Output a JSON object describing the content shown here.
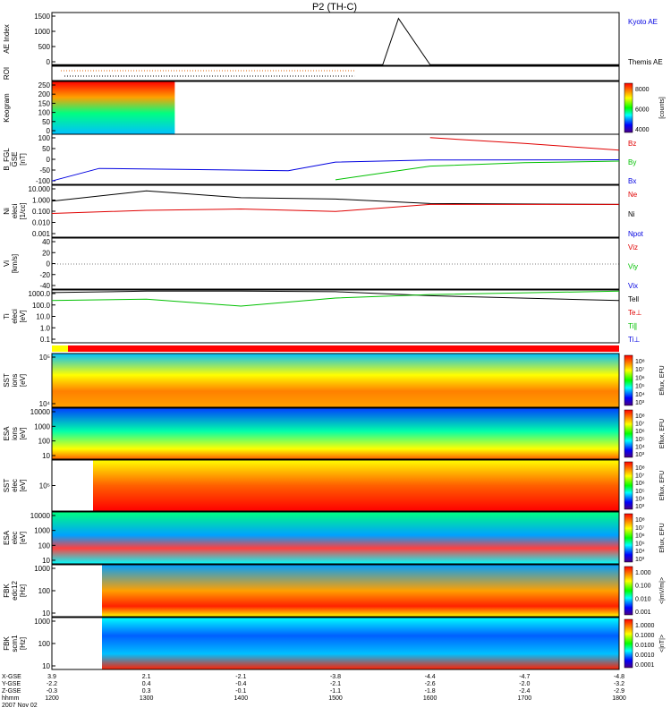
{
  "title": "P2 (TH-C)",
  "colors": {
    "red": "#e00000",
    "green": "#00c000",
    "blue": "#0000e0",
    "black": "#000000",
    "yellow": "#ffff00",
    "cyan": "#00ffff"
  },
  "panels": [
    {
      "id": "ae",
      "ylabel": [
        "AE Index"
      ],
      "ticks": [
        "1500",
        "1000",
        "500",
        "0"
      ],
      "legend": [
        {
          "text": "Kyoto AE",
          "color": "#0000e0"
        },
        {
          "text": "Themis AE",
          "color": "#000000"
        }
      ]
    },
    {
      "id": "roi",
      "ylabel": [
        "ROI"
      ],
      "ticks": [],
      "legend": []
    },
    {
      "id": "keogram",
      "ylabel": [
        "Keogram"
      ],
      "ticks": [
        "250",
        "200",
        "150",
        "100",
        "50",
        "0"
      ],
      "legend": [],
      "colorbar": {
        "ticks": [
          "8000",
          "6000",
          "4000"
        ],
        "label": "[counts]"
      }
    },
    {
      "id": "bfgl",
      "ylabel": [
        "B_FGL",
        "GSE",
        "[nT]"
      ],
      "ticks": [
        "100",
        "50",
        "0",
        "-50",
        "-100"
      ],
      "legend": [
        {
          "text": "Bz",
          "color": "#e00000"
        },
        {
          "text": "By",
          "color": "#00c000"
        },
        {
          "text": "Bx",
          "color": "#0000e0"
        }
      ]
    },
    {
      "id": "ni",
      "ylabel": [
        "Ni",
        "eleci",
        "[1/cc]"
      ],
      "ticks": [
        "10.000",
        "1.000",
        "0.100",
        "0.010",
        "0.001"
      ],
      "legend": [
        {
          "text": "Ne",
          "color": "#e00000"
        },
        {
          "text": "Ni",
          "color": "#000000"
        },
        {
          "text": "Npot",
          "color": "#0000e0"
        }
      ]
    },
    {
      "id": "vi",
      "ylabel": [
        "Vi",
        "[km/s]"
      ],
      "ticks": [
        "40",
        "20",
        "0",
        "-20",
        "-40"
      ],
      "legend": [
        {
          "text": "Viz",
          "color": "#e00000"
        },
        {
          "text": "Viy",
          "color": "#00c000"
        },
        {
          "text": "Vix",
          "color": "#0000e0"
        }
      ]
    },
    {
      "id": "ti",
      "ylabel": [
        "Ti",
        "eleci",
        "[eV]"
      ],
      "ticks": [
        "1000.0",
        "100.0",
        "10.0",
        "1.0",
        "0.1"
      ],
      "legend": [
        {
          "text": "Tell",
          "color": "#000000"
        },
        {
          "text": "Te⊥",
          "color": "#e00000"
        },
        {
          "text": "Ti∥",
          "color": "#00c000"
        },
        {
          "text": "Ti⊥",
          "color": "#0000e0"
        }
      ]
    },
    {
      "id": "sst_i",
      "ylabel": [
        "SST",
        "ions",
        "[eV]"
      ],
      "ticks": [
        "10⁵",
        "10⁴"
      ],
      "legend": [],
      "colorbar": {
        "ticks": [
          "10⁸",
          "10⁷",
          "10⁶",
          "10⁵",
          "10⁴",
          "10³"
        ],
        "label": "Eflux, EFU"
      }
    },
    {
      "id": "esa_i",
      "ylabel": [
        "ESA",
        "ions",
        "[eV]"
      ],
      "ticks": [
        "10000",
        "1000",
        "100",
        "10"
      ],
      "legend": [],
      "colorbar": {
        "ticks": [
          "10⁸",
          "10⁷",
          "10⁶",
          "10⁵",
          "10⁴",
          "10³"
        ],
        "label": "Eflux, EFU"
      }
    },
    {
      "id": "sst_e",
      "ylabel": [
        "SST",
        "elec",
        "[eV]"
      ],
      "ticks": [
        "10⁵"
      ],
      "legend": [],
      "colorbar": {
        "ticks": [
          "10⁸",
          "10⁷",
          "10⁶",
          "10⁵",
          "10⁴",
          "10³"
        ],
        "label": "Eflux, EFU"
      }
    },
    {
      "id": "esa_e",
      "ylabel": [
        "ESA",
        "elec",
        "[eV]"
      ],
      "ticks": [
        "10000",
        "1000",
        "100",
        "10"
      ],
      "legend": [],
      "colorbar": {
        "ticks": [
          "10⁸",
          "10⁷",
          "10⁶",
          "10⁵",
          "10⁴",
          "10³"
        ],
        "label": "Eflux, EFU"
      }
    },
    {
      "id": "fbk_e",
      "ylabel": [
        "FBK",
        "edc12",
        "[Hz]"
      ],
      "ticks": [
        "1000",
        "100",
        "10"
      ],
      "legend": [],
      "colorbar": {
        "ticks": [
          "1.000",
          "0.100",
          "0.010",
          "0.001"
        ],
        "label": "<|mV/m|>"
      }
    },
    {
      "id": "fbk_b",
      "ylabel": [
        "FBK",
        "scm1",
        "[Hz]"
      ],
      "ticks": [
        "1000",
        "100",
        "10"
      ],
      "legend": [],
      "colorbar": {
        "ticks": [
          "1.0000",
          "0.1000",
          "0.0100",
          "0.0010",
          "0.0001"
        ],
        "label": "<|nT|>"
      }
    }
  ],
  "xaxis": {
    "rows": [
      {
        "label": "X-GSE",
        "values": [
          "3.9",
          "2.1",
          "-2.1",
          "-3.8",
          "-4.4",
          "-4.7",
          "-4.8"
        ]
      },
      {
        "label": "Y-GSE",
        "values": [
          "-2.2",
          "0.4",
          "-0.4",
          "-2.1",
          "-2.6",
          "-2.0",
          "-3.2"
        ]
      },
      {
        "label": "Z-GSE",
        "values": [
          "-0.3",
          "0.3",
          "-0.1",
          "-1.1",
          "-1.8",
          "-2.4",
          "-2.9"
        ]
      },
      {
        "label": "hhmm",
        "values": [
          "1200",
          "1300",
          "1400",
          "1500",
          "1600",
          "1700",
          "1800"
        ]
      }
    ],
    "date": "2007 Nov 02"
  },
  "chart_data": {
    "type": "line",
    "title": "P2 (TH-C)",
    "x": [
      "1200",
      "1300",
      "1400",
      "1500",
      "1600",
      "1700",
      "1800"
    ],
    "xlabel": "hhmm",
    "date": "2007 Nov 02",
    "series": [
      {
        "name": "Themis AE",
        "panel": "AE Index",
        "x": [
          "1200",
          "1300",
          "1400",
          "1530",
          "1540",
          "1600",
          "1800"
        ],
        "values": [
          20,
          20,
          20,
          20,
          1420,
          20,
          20
        ]
      },
      {
        "name": "Bz",
        "panel": "B_FGL",
        "x": [
          "1200",
          "1500",
          "1600",
          "1700",
          "1800"
        ],
        "values": [
          null,
          null,
          95,
          70,
          40
        ]
      },
      {
        "name": "By",
        "panel": "B_FGL",
        "x": [
          "1500",
          "1530",
          "1600",
          "1700",
          "1800"
        ],
        "values": [
          -90,
          -60,
          -30,
          -15,
          -8
        ]
      },
      {
        "name": "Bx",
        "panel": "B_FGL",
        "x": [
          "1200",
          "1230",
          "1430",
          "1500",
          "1600",
          "1800"
        ],
        "values": [
          -95,
          -40,
          -50,
          -12,
          -3,
          -2
        ]
      },
      {
        "name": "Ni",
        "panel": "Ni",
        "x": [
          "1200",
          "1300",
          "1400",
          "1500",
          "1600",
          "1800"
        ],
        "values": [
          1.0,
          8.0,
          2.0,
          1.5,
          0.6,
          0.5
        ]
      },
      {
        "name": "Ne",
        "panel": "Ni",
        "x": [
          "1200",
          "1300",
          "1400",
          "1500",
          "1600",
          "1800"
        ],
        "values": [
          0.08,
          0.15,
          0.2,
          0.12,
          0.5,
          0.5
        ]
      },
      {
        "name": "Tell",
        "panel": "Ti",
        "x": [
          "1200",
          "1300",
          "1400",
          "1500",
          "1600",
          "1800"
        ],
        "values": [
          1500,
          2000,
          2000,
          1800,
          800,
          300
        ]
      },
      {
        "name": "Ti∥",
        "panel": "Ti",
        "x": [
          "1200",
          "1300",
          "1400",
          "1500",
          "1600",
          "1800"
        ],
        "values": [
          300,
          400,
          100,
          500,
          1000,
          2000
        ]
      }
    ],
    "spectrograms": [
      "Keogram",
      "SST ions",
      "ESA ions",
      "SST elec",
      "ESA elec",
      "FBK edc12",
      "FBK scm1"
    ]
  }
}
